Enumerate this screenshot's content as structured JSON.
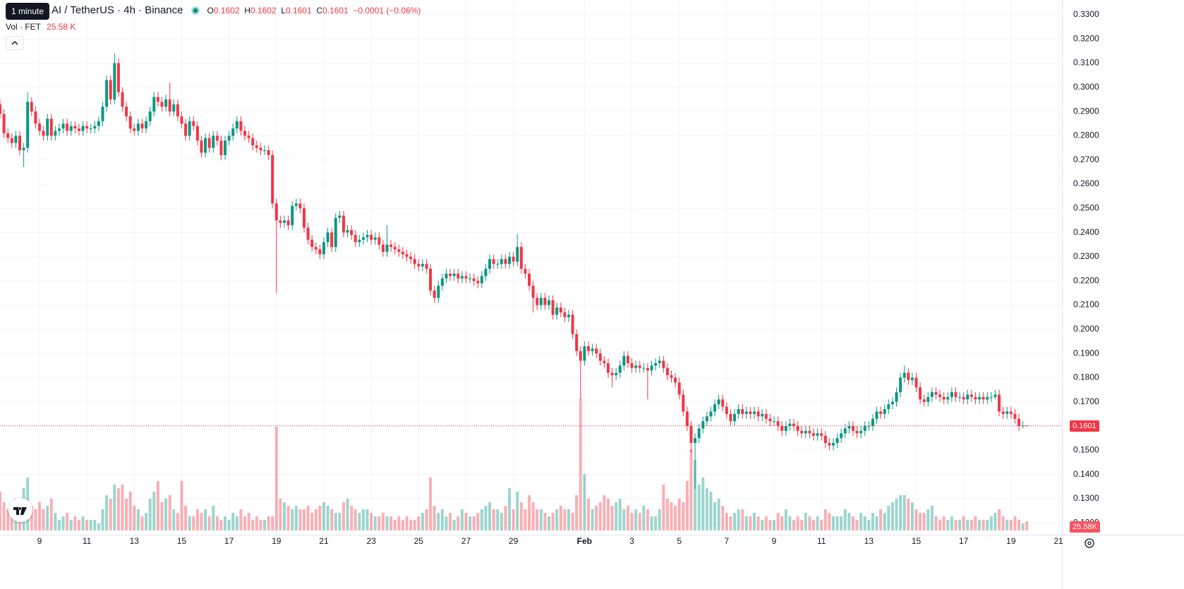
{
  "chart_data": {
    "type": "candlestick",
    "tooltip": "1 minute",
    "title": "AI / TetherUS · 4h · Binance",
    "ohlc_letters": [
      "O",
      "H",
      "L",
      "C"
    ],
    "change": "−0.0001 (−0.06%)",
    "volume_title": "Vol · FET",
    "volume_label": "25.58 K",
    "volume_badge": "25.58K",
    "up_color": "#089981",
    "down_color": "#f23645",
    "grid": true,
    "xlim": [
      0,
      268
    ],
    "xticks": [
      {
        "value": 10,
        "label": "9"
      },
      {
        "value": 22,
        "label": "11"
      },
      {
        "value": 34,
        "label": "13"
      },
      {
        "value": 46,
        "label": "15"
      },
      {
        "value": 58,
        "label": "17"
      },
      {
        "value": 70,
        "label": "19"
      },
      {
        "value": 82,
        "label": "21"
      },
      {
        "value": 94,
        "label": "23"
      },
      {
        "value": 106,
        "label": "25"
      },
      {
        "value": 118,
        "label": "27"
      },
      {
        "value": 130,
        "label": "29"
      },
      {
        "value": 148,
        "label": "Feb"
      },
      {
        "value": 160,
        "label": "3"
      },
      {
        "value": 172,
        "label": "5"
      },
      {
        "value": 184,
        "label": "7"
      },
      {
        "value": 196,
        "label": "9"
      },
      {
        "value": 208,
        "label": "11"
      },
      {
        "value": 220,
        "label": "13"
      },
      {
        "value": 232,
        "label": "15"
      },
      {
        "value": 244,
        "label": "17"
      },
      {
        "value": 256,
        "label": "19"
      },
      {
        "value": 268,
        "label": "21"
      }
    ],
    "ylim": [
      0.1151,
      0.3361
    ],
    "yticks": [
      {
        "value": 0.12,
        "label": "0.1200"
      },
      {
        "value": 0.13,
        "label": "0.1300"
      },
      {
        "value": 0.14,
        "label": "0.1400"
      },
      {
        "value": 0.15,
        "label": "0.1500"
      },
      {
        "value": 0.16,
        "label": "0.1600"
      },
      {
        "value": 0.17,
        "label": "0.1700"
      },
      {
        "value": 0.18,
        "label": "0.1800"
      },
      {
        "value": 0.19,
        "label": "0.1900"
      },
      {
        "value": 0.2,
        "label": "0.2000"
      },
      {
        "value": 0.21,
        "label": "0.2100"
      },
      {
        "value": 0.22,
        "label": "0.2200"
      },
      {
        "value": 0.23,
        "label": "0.2300"
      },
      {
        "value": 0.24,
        "label": "0.2400"
      },
      {
        "value": 0.25,
        "label": "0.2500"
      },
      {
        "value": 0.26,
        "label": "0.2600"
      },
      {
        "value": 0.27,
        "label": "0.2700"
      },
      {
        "value": 0.28,
        "label": "0.2800"
      },
      {
        "value": 0.29,
        "label": "0.2900"
      },
      {
        "value": 0.3,
        "label": "0.3000"
      },
      {
        "value": 0.31,
        "label": "0.3100"
      },
      {
        "value": 0.32,
        "label": "0.3200"
      },
      {
        "value": 0.33,
        "label": "0.3300"
      }
    ],
    "open": [
      0.293,
      0.289,
      0.281,
      0.279,
      0.277,
      0.28,
      0.274,
      0.275,
      0.294,
      0.29,
      0.285,
      0.282,
      0.28,
      0.287,
      0.28,
      0.282,
      0.283,
      0.285,
      0.282,
      0.284,
      0.283,
      0.282,
      0.284,
      0.283,
      0.283,
      0.284,
      0.286,
      0.292,
      0.303,
      0.295,
      0.31,
      0.298,
      0.292,
      0.288,
      0.283,
      0.282,
      0.285,
      0.283,
      0.286,
      0.29,
      0.296,
      0.294,
      0.292,
      0.295,
      0.29,
      0.293,
      0.288,
      0.285,
      0.28,
      0.286,
      0.284,
      0.278,
      0.273,
      0.279,
      0.275,
      0.28,
      0.278,
      0.272,
      0.278,
      0.28,
      0.283,
      0.286,
      0.282,
      0.28,
      0.279,
      0.276,
      0.275,
      0.274,
      0.274,
      0.272,
      0.252,
      0.245,
      0.244,
      0.245,
      0.243,
      0.251,
      0.252,
      0.25,
      0.242,
      0.237,
      0.234,
      0.233,
      0.231,
      0.236,
      0.24,
      0.234,
      0.246,
      0.247,
      0.24,
      0.241,
      0.239,
      0.236,
      0.237,
      0.238,
      0.239,
      0.237,
      0.238,
      0.235,
      0.232,
      0.235,
      0.234,
      0.233,
      0.232,
      0.231,
      0.23,
      0.229,
      0.227,
      0.226,
      0.227,
      0.225,
      0.216,
      0.213,
      0.218,
      0.221,
      0.223,
      0.222,
      0.223,
      0.221,
      0.222,
      0.221,
      0.221,
      0.22,
      0.219,
      0.222,
      0.225,
      0.229,
      0.227,
      0.227,
      0.229,
      0.227,
      0.23,
      0.228,
      0.234,
      0.225,
      0.223,
      0.218,
      0.213,
      0.21,
      0.213,
      0.21,
      0.212,
      0.206,
      0.209,
      0.207,
      0.205,
      0.206,
      0.198,
      0.191,
      0.187,
      0.193,
      0.191,
      0.192,
      0.19,
      0.187,
      0.186,
      0.182,
      0.181,
      0.182,
      0.185,
      0.189,
      0.186,
      0.184,
      0.185,
      0.184,
      0.184,
      0.183,
      0.185,
      0.186,
      0.187,
      0.184,
      0.181,
      0.18,
      0.178,
      0.173,
      0.166,
      0.16,
      0.153,
      0.155,
      0.159,
      0.162,
      0.164,
      0.166,
      0.169,
      0.171,
      0.168,
      0.165,
      0.162,
      0.165,
      0.167,
      0.165,
      0.166,
      0.165,
      0.166,
      0.164,
      0.165,
      0.163,
      0.162,
      0.162,
      0.16,
      0.158,
      0.16,
      0.161,
      0.16,
      0.158,
      0.157,
      0.158,
      0.157,
      0.156,
      0.157,
      0.156,
      0.153,
      0.152,
      0.153,
      0.155,
      0.157,
      0.159,
      0.16,
      0.158,
      0.157,
      0.158,
      0.16,
      0.16,
      0.163,
      0.166,
      0.165,
      0.167,
      0.169,
      0.17,
      0.174,
      0.18,
      0.182,
      0.179,
      0.18,
      0.176,
      0.171,
      0.17,
      0.172,
      0.174,
      0.173,
      0.172,
      0.171,
      0.172,
      0.174,
      0.172,
      0.172,
      0.171,
      0.173,
      0.172,
      0.171,
      0.172,
      0.171,
      0.172,
      0.172,
      0.173,
      0.166,
      0.165,
      0.166,
      0.165,
      0.163,
      0.16,
      0.1602
    ],
    "high": [
      0.295,
      0.291,
      0.283,
      0.281,
      0.282,
      0.282,
      0.277,
      0.298,
      0.296,
      0.292,
      0.287,
      0.284,
      0.289,
      0.289,
      0.284,
      0.285,
      0.287,
      0.287,
      0.286,
      0.286,
      0.285,
      0.286,
      0.286,
      0.285,
      0.286,
      0.288,
      0.294,
      0.305,
      0.305,
      0.314,
      0.312,
      0.3,
      0.294,
      0.29,
      0.285,
      0.287,
      0.287,
      0.288,
      0.292,
      0.298,
      0.298,
      0.296,
      0.297,
      0.302,
      0.295,
      0.295,
      0.29,
      0.287,
      0.288,
      0.288,
      0.286,
      0.28,
      0.281,
      0.281,
      0.282,
      0.282,
      0.28,
      0.28,
      0.282,
      0.285,
      0.288,
      0.288,
      0.284,
      0.282,
      0.281,
      0.278,
      0.277,
      0.276,
      0.276,
      0.274,
      0.254,
      0.247,
      0.247,
      0.247,
      0.253,
      0.254,
      0.254,
      0.252,
      0.244,
      0.239,
      0.236,
      0.235,
      0.238,
      0.242,
      0.242,
      0.248,
      0.249,
      0.249,
      0.243,
      0.243,
      0.241,
      0.239,
      0.24,
      0.241,
      0.241,
      0.24,
      0.24,
      0.237,
      0.243,
      0.237,
      0.236,
      0.235,
      0.234,
      0.233,
      0.232,
      0.231,
      0.229,
      0.229,
      0.229,
      0.227,
      0.218,
      0.22,
      0.223,
      0.225,
      0.225,
      0.225,
      0.225,
      0.224,
      0.224,
      0.223,
      0.223,
      0.222,
      0.224,
      0.227,
      0.231,
      0.231,
      0.229,
      0.231,
      0.231,
      0.232,
      0.232,
      0.2395,
      0.236,
      0.227,
      0.225,
      0.22,
      0.215,
      0.215,
      0.215,
      0.214,
      0.214,
      0.211,
      0.211,
      0.209,
      0.208,
      0.208,
      0.2,
      0.193,
      0.195,
      0.195,
      0.194,
      0.194,
      0.192,
      0.189,
      0.188,
      0.184,
      0.184,
      0.187,
      0.191,
      0.191,
      0.188,
      0.187,
      0.187,
      0.186,
      0.186,
      0.187,
      0.188,
      0.189,
      0.189,
      0.186,
      0.183,
      0.182,
      0.18,
      0.175,
      0.168,
      0.162,
      0.157,
      0.161,
      0.164,
      0.166,
      0.168,
      0.171,
      0.173,
      0.173,
      0.17,
      0.167,
      0.167,
      0.169,
      0.169,
      0.168,
      0.168,
      0.168,
      0.168,
      0.167,
      0.167,
      0.165,
      0.164,
      0.164,
      0.162,
      0.162,
      0.163,
      0.163,
      0.162,
      0.16,
      0.16,
      0.16,
      0.159,
      0.159,
      0.159,
      0.158,
      0.155,
      0.155,
      0.157,
      0.159,
      0.161,
      0.162,
      0.162,
      0.16,
      0.16,
      0.162,
      0.162,
      0.165,
      0.168,
      0.168,
      0.169,
      0.171,
      0.172,
      0.176,
      0.182,
      0.185,
      0.184,
      0.182,
      0.182,
      0.178,
      0.173,
      0.174,
      0.176,
      0.176,
      0.175,
      0.174,
      0.174,
      0.176,
      0.176,
      0.174,
      0.174,
      0.175,
      0.175,
      0.174,
      0.174,
      0.174,
      0.174,
      0.174,
      0.175,
      0.175,
      0.168,
      0.168,
      0.168,
      0.167,
      0.165,
      0.162,
      0.1602
    ],
    "low": [
      0.287,
      0.279,
      0.277,
      0.275,
      0.275,
      0.272,
      0.267,
      0.273,
      0.288,
      0.283,
      0.28,
      0.278,
      0.278,
      0.278,
      0.278,
      0.28,
      0.281,
      0.28,
      0.28,
      0.281,
      0.28,
      0.28,
      0.281,
      0.281,
      0.281,
      0.282,
      0.284,
      0.29,
      0.293,
      0.293,
      0.296,
      0.29,
      0.286,
      0.281,
      0.28,
      0.28,
      0.281,
      0.281,
      0.284,
      0.288,
      0.292,
      0.29,
      0.29,
      0.288,
      0.288,
      0.286,
      0.283,
      0.278,
      0.278,
      0.282,
      0.276,
      0.271,
      0.271,
      0.273,
      0.273,
      0.276,
      0.27,
      0.27,
      0.276,
      0.278,
      0.281,
      0.28,
      0.278,
      0.277,
      0.274,
      0.273,
      0.272,
      0.272,
      0.27,
      0.25,
      0.215,
      0.242,
      0.242,
      0.241,
      0.241,
      0.249,
      0.248,
      0.24,
      0.235,
      0.232,
      0.231,
      0.229,
      0.229,
      0.234,
      0.232,
      0.232,
      0.244,
      0.238,
      0.238,
      0.237,
      0.234,
      0.234,
      0.235,
      0.236,
      0.235,
      0.235,
      0.233,
      0.23,
      0.23,
      0.232,
      0.231,
      0.23,
      0.229,
      0.228,
      0.227,
      0.225,
      0.224,
      0.224,
      0.223,
      0.214,
      0.211,
      0.211,
      0.216,
      0.219,
      0.22,
      0.22,
      0.219,
      0.219,
      0.219,
      0.219,
      0.218,
      0.217,
      0.217,
      0.22,
      0.223,
      0.225,
      0.225,
      0.225,
      0.225,
      0.225,
      0.226,
      0.226,
      0.223,
      0.221,
      0.216,
      0.207,
      0.208,
      0.208,
      0.208,
      0.208,
      0.204,
      0.204,
      0.205,
      0.203,
      0.203,
      0.196,
      0.189,
      0.171,
      0.185,
      0.189,
      0.189,
      0.188,
      0.185,
      0.184,
      0.18,
      0.176,
      0.179,
      0.18,
      0.183,
      0.184,
      0.182,
      0.182,
      0.182,
      0.182,
      0.171,
      0.181,
      0.183,
      0.184,
      0.182,
      0.179,
      0.178,
      0.176,
      0.171,
      0.164,
      0.158,
      0.149,
      0.134,
      0.153,
      0.157,
      0.16,
      0.162,
      0.164,
      0.167,
      0.166,
      0.163,
      0.16,
      0.16,
      0.163,
      0.163,
      0.163,
      0.163,
      0.163,
      0.162,
      0.162,
      0.161,
      0.16,
      0.16,
      0.158,
      0.156,
      0.156,
      0.158,
      0.158,
      0.156,
      0.155,
      0.155,
      0.155,
      0.154,
      0.154,
      0.154,
      0.151,
      0.15,
      0.15,
      0.151,
      0.153,
      0.155,
      0.157,
      0.156,
      0.155,
      0.155,
      0.156,
      0.158,
      0.158,
      0.161,
      0.163,
      0.163,
      0.165,
      0.167,
      0.168,
      0.172,
      0.178,
      0.177,
      0.177,
      0.174,
      0.169,
      0.168,
      0.168,
      0.17,
      0.171,
      0.17,
      0.169,
      0.169,
      0.17,
      0.17,
      0.17,
      0.169,
      0.169,
      0.17,
      0.169,
      0.169,
      0.169,
      0.169,
      0.17,
      0.171,
      0.164,
      0.163,
      0.163,
      0.163,
      0.161,
      0.158,
      0.159,
      0.1601
    ],
    "close": [
      0.289,
      0.281,
      0.279,
      0.277,
      0.28,
      0.274,
      0.275,
      0.294,
      0.29,
      0.285,
      0.282,
      0.28,
      0.287,
      0.28,
      0.282,
      0.283,
      0.285,
      0.282,
      0.284,
      0.283,
      0.282,
      0.284,
      0.283,
      0.283,
      0.284,
      0.286,
      0.292,
      0.303,
      0.295,
      0.31,
      0.298,
      0.292,
      0.288,
      0.283,
      0.282,
      0.285,
      0.283,
      0.286,
      0.29,
      0.296,
      0.294,
      0.292,
      0.295,
      0.29,
      0.293,
      0.288,
      0.285,
      0.28,
      0.286,
      0.284,
      0.278,
      0.273,
      0.279,
      0.275,
      0.28,
      0.278,
      0.272,
      0.278,
      0.28,
      0.283,
      0.286,
      0.282,
      0.28,
      0.279,
      0.276,
      0.275,
      0.274,
      0.274,
      0.272,
      0.252,
      0.245,
      0.244,
      0.245,
      0.243,
      0.251,
      0.252,
      0.25,
      0.242,
      0.237,
      0.234,
      0.233,
      0.231,
      0.236,
      0.24,
      0.234,
      0.246,
      0.247,
      0.24,
      0.241,
      0.239,
      0.236,
      0.237,
      0.238,
      0.239,
      0.237,
      0.238,
      0.235,
      0.232,
      0.235,
      0.234,
      0.233,
      0.232,
      0.231,
      0.23,
      0.229,
      0.227,
      0.226,
      0.227,
      0.225,
      0.216,
      0.213,
      0.218,
      0.221,
      0.223,
      0.222,
      0.223,
      0.221,
      0.222,
      0.221,
      0.221,
      0.22,
      0.219,
      0.222,
      0.225,
      0.229,
      0.227,
      0.227,
      0.229,
      0.227,
      0.23,
      0.228,
      0.234,
      0.225,
      0.223,
      0.218,
      0.213,
      0.21,
      0.213,
      0.21,
      0.212,
      0.206,
      0.209,
      0.207,
      0.205,
      0.206,
      0.198,
      0.191,
      0.187,
      0.193,
      0.191,
      0.192,
      0.19,
      0.187,
      0.186,
      0.182,
      0.181,
      0.182,
      0.185,
      0.189,
      0.186,
      0.184,
      0.185,
      0.184,
      0.184,
      0.183,
      0.185,
      0.186,
      0.187,
      0.184,
      0.181,
      0.18,
      0.178,
      0.173,
      0.166,
      0.16,
      0.153,
      0.155,
      0.159,
      0.162,
      0.164,
      0.166,
      0.169,
      0.171,
      0.168,
      0.165,
      0.162,
      0.165,
      0.167,
      0.165,
      0.166,
      0.165,
      0.166,
      0.164,
      0.165,
      0.163,
      0.162,
      0.162,
      0.16,
      0.158,
      0.16,
      0.161,
      0.16,
      0.158,
      0.157,
      0.158,
      0.157,
      0.156,
      0.157,
      0.156,
      0.153,
      0.152,
      0.153,
      0.155,
      0.157,
      0.159,
      0.16,
      0.158,
      0.157,
      0.158,
      0.16,
      0.16,
      0.163,
      0.166,
      0.165,
      0.167,
      0.169,
      0.17,
      0.174,
      0.18,
      0.182,
      0.179,
      0.18,
      0.176,
      0.171,
      0.17,
      0.172,
      0.174,
      0.173,
      0.172,
      0.171,
      0.172,
      0.174,
      0.172,
      0.172,
      0.171,
      0.173,
      0.172,
      0.171,
      0.172,
      0.171,
      0.172,
      0.172,
      0.173,
      0.166,
      0.165,
      0.166,
      0.165,
      0.163,
      0.16,
      0.1602,
      0.1601
    ],
    "volume": [
      110,
      80,
      60,
      70,
      90,
      60,
      120,
      150,
      70,
      60,
      80,
      60,
      70,
      90,
      50,
      30,
      40,
      50,
      30,
      40,
      30,
      40,
      30,
      30,
      30,
      20,
      60,
      100,
      90,
      130,
      120,
      130,
      90,
      110,
      70,
      60,
      40,
      50,
      90,
      110,
      140,
      80,
      90,
      100,
      60,
      50,
      140,
      70,
      40,
      40,
      60,
      50,
      60,
      40,
      70,
      40,
      30,
      40,
      30,
      50,
      40,
      60,
      40,
      50,
      30,
      40,
      30,
      30,
      40,
      40,
      294,
      90,
      80,
      70,
      60,
      70,
      60,
      60,
      70,
      50,
      60,
      70,
      80,
      70,
      60,
      50,
      50,
      80,
      90,
      70,
      60,
      50,
      60,
      60,
      50,
      40,
      40,
      50,
      40,
      40,
      30,
      40,
      30,
      40,
      30,
      30,
      40,
      50,
      60,
      150,
      70,
      50,
      60,
      40,
      50,
      30,
      40,
      60,
      50,
      40,
      40,
      50,
      60,
      70,
      80,
      60,
      60,
      50,
      70,
      120,
      60,
      110,
      80,
      60,
      100,
      80,
      60,
      60,
      50,
      40,
      50,
      60,
      70,
      60,
      60,
      50,
      100,
      374,
      160,
      90,
      60,
      70,
      80,
      100,
      90,
      70,
      80,
      90,
      60,
      70,
      50,
      60,
      50,
      70,
      60,
      40,
      40,
      60,
      130,
      90,
      80,
      70,
      90,
      80,
      140,
      230,
      200,
      130,
      150,
      120,
      110,
      80,
      90,
      70,
      50,
      40,
      50,
      60,
      60,
      40,
      40,
      50,
      40,
      30,
      40,
      30,
      30,
      50,
      40,
      60,
      40,
      30,
      40,
      30,
      50,
      40,
      30,
      40,
      30,
      60,
      50,
      40,
      40,
      40,
      60,
      50,
      40,
      30,
      50,
      40,
      30,
      50,
      40,
      60,
      50,
      70,
      80,
      90,
      100,
      100,
      90,
      80,
      60,
      50,
      50,
      60,
      70,
      40,
      30,
      40,
      30,
      40,
      30,
      30,
      40,
      30,
      30,
      40,
      30,
      30,
      30,
      40,
      50,
      60,
      40,
      30,
      30,
      40,
      30,
      20,
      25.58
    ]
  }
}
